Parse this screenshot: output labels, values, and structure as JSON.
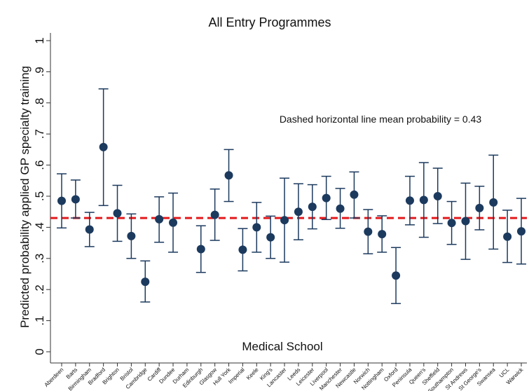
{
  "chart_data": {
    "type": "dot_errorbar",
    "title": "All Entry Programmes",
    "y_label": "Predicted probability applied GP specialty training",
    "x_label": "Medical School",
    "annotation": "Dashed horizontal line mean probability = 0.43",
    "mean_line": 0.43,
    "mean_line_color": "#e3191c",
    "color": "#1c3a5e",
    "categories": [
      "Aberdeen",
      "Barts",
      "Birmingham",
      "Bradford",
      "Brighton",
      "Bristol",
      "Cambridge",
      "Cardiff",
      "Dundee",
      "Durham",
      "Edinburgh",
      "Glasgow",
      "Hull York",
      "Imperial",
      "Keele",
      "King's",
      "Lancaster",
      "Leeds",
      "Leicester",
      "Liverpool",
      "Manchester",
      "Newcastle",
      "Norwich",
      "Nottingham",
      "Oxford",
      "Peninsula",
      "Queen's",
      "Sheffield",
      "Southampton",
      "St Andrews",
      "St George's",
      "Swansea",
      "UCL",
      "Warwick"
    ],
    "values": [
      0.485,
      0.49,
      0.393,
      0.658,
      0.445,
      0.372,
      0.225,
      0.426,
      0.415,
      null,
      0.33,
      0.44,
      0.567,
      0.328,
      0.4,
      0.368,
      0.423,
      0.45,
      0.466,
      0.494,
      0.46,
      0.505,
      0.386,
      0.378,
      0.245,
      0.486,
      0.488,
      0.5,
      0.414,
      0.42,
      0.462,
      0.48,
      0.37,
      0.387
    ],
    "lower": [
      0.398,
      0.43,
      0.338,
      0.47,
      0.355,
      0.3,
      0.16,
      0.352,
      0.32,
      null,
      0.255,
      0.358,
      0.483,
      0.26,
      0.32,
      0.3,
      0.288,
      0.36,
      0.395,
      0.425,
      0.397,
      0.43,
      0.315,
      0.32,
      0.155,
      0.408,
      0.368,
      0.412,
      0.345,
      0.297,
      0.392,
      0.33,
      0.287,
      0.282
    ],
    "upper": [
      0.572,
      0.552,
      0.448,
      0.845,
      0.535,
      0.443,
      0.292,
      0.498,
      0.51,
      null,
      0.405,
      0.523,
      0.65,
      0.396,
      0.48,
      0.436,
      0.558,
      0.54,
      0.537,
      0.564,
      0.525,
      0.578,
      0.457,
      0.437,
      0.335,
      0.564,
      0.608,
      0.59,
      0.483,
      0.542,
      0.532,
      0.632,
      0.455,
      0.493
    ],
    "ylim": [
      0,
      1
    ],
    "yticks": [
      0,
      {
        "value": 0.1,
        "label": ".1"
      },
      {
        "value": 0.2,
        "label": ".2"
      },
      {
        "value": 0.3,
        "label": ".3"
      },
      {
        "value": 0.4,
        "label": ".4"
      },
      {
        "value": 0.5,
        "label": ".5"
      },
      {
        "value": 0.6,
        "label": ".6"
      },
      {
        "value": 0.7,
        "label": ".7"
      },
      {
        "value": 0.8,
        "label": ".8"
      },
      {
        "value": 0.9,
        "label": ".9"
      },
      1
    ]
  }
}
